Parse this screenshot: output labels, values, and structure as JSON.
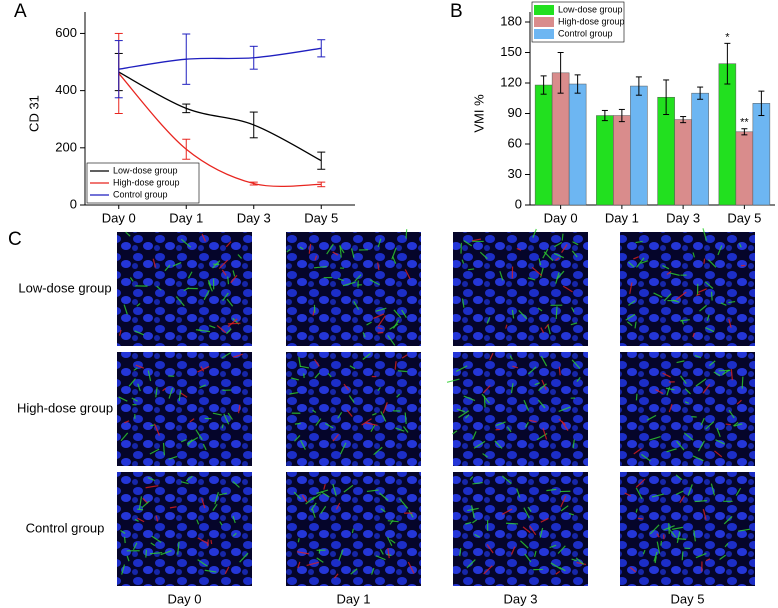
{
  "chart_data": [
    {
      "type": "line",
      "panel_label": "A",
      "ylabel": "CD 31",
      "categories": [
        "Day 0",
        "Day 1",
        "Day 3",
        "Day 5"
      ],
      "ylim": [
        0,
        640
      ],
      "yticks": [
        0,
        200,
        400,
        600
      ],
      "legend": "lower left",
      "smooth": true,
      "series": [
        {
          "name": "Low-dose group",
          "color": "#000000",
          "values": [
            465,
            338,
            280,
            155
          ],
          "errors": [
            65,
            15,
            45,
            30
          ]
        },
        {
          "name": "High-dose group",
          "color": "#e8251f",
          "values": [
            460,
            195,
            75,
            72
          ],
          "errors": [
            140,
            35,
            5,
            8
          ]
        },
        {
          "name": "Control group",
          "color": "#1f1fbf",
          "values": [
            475,
            510,
            515,
            548
          ],
          "errors": [
            100,
            88,
            40,
            30
          ]
        }
      ]
    },
    {
      "type": "bar",
      "panel_label": "B",
      "ylabel": "VMI %",
      "categories": [
        "Day 0",
        "Day 1",
        "Day 3",
        "Day 5"
      ],
      "ylim": [
        0,
        180
      ],
      "yticks": [
        0,
        30,
        60,
        90,
        120,
        150,
        180
      ],
      "legend": "upper left",
      "annotations": [
        "*",
        "**"
      ],
      "series": [
        {
          "name": "Low-dose group",
          "color": "#22e01f",
          "values": [
            118,
            88,
            106,
            139
          ],
          "errors": [
            9,
            5,
            17,
            20
          ]
        },
        {
          "name": "High-dose group",
          "color": "#d98c8c",
          "values": [
            130,
            88,
            84,
            72
          ],
          "errors": [
            20,
            6,
            3,
            3
          ]
        },
        {
          "name": "Control group",
          "color": "#6db6f2",
          "values": [
            119,
            117,
            110,
            100
          ],
          "errors": [
            9,
            9,
            6,
            12
          ]
        }
      ]
    }
  ],
  "micrographs": {
    "label": "C",
    "rows": [
      "Low-dose group",
      "High-dose group",
      "Control group"
    ],
    "columns": [
      "Day 0",
      "Day 1",
      "Day 3",
      "Day 5"
    ]
  }
}
